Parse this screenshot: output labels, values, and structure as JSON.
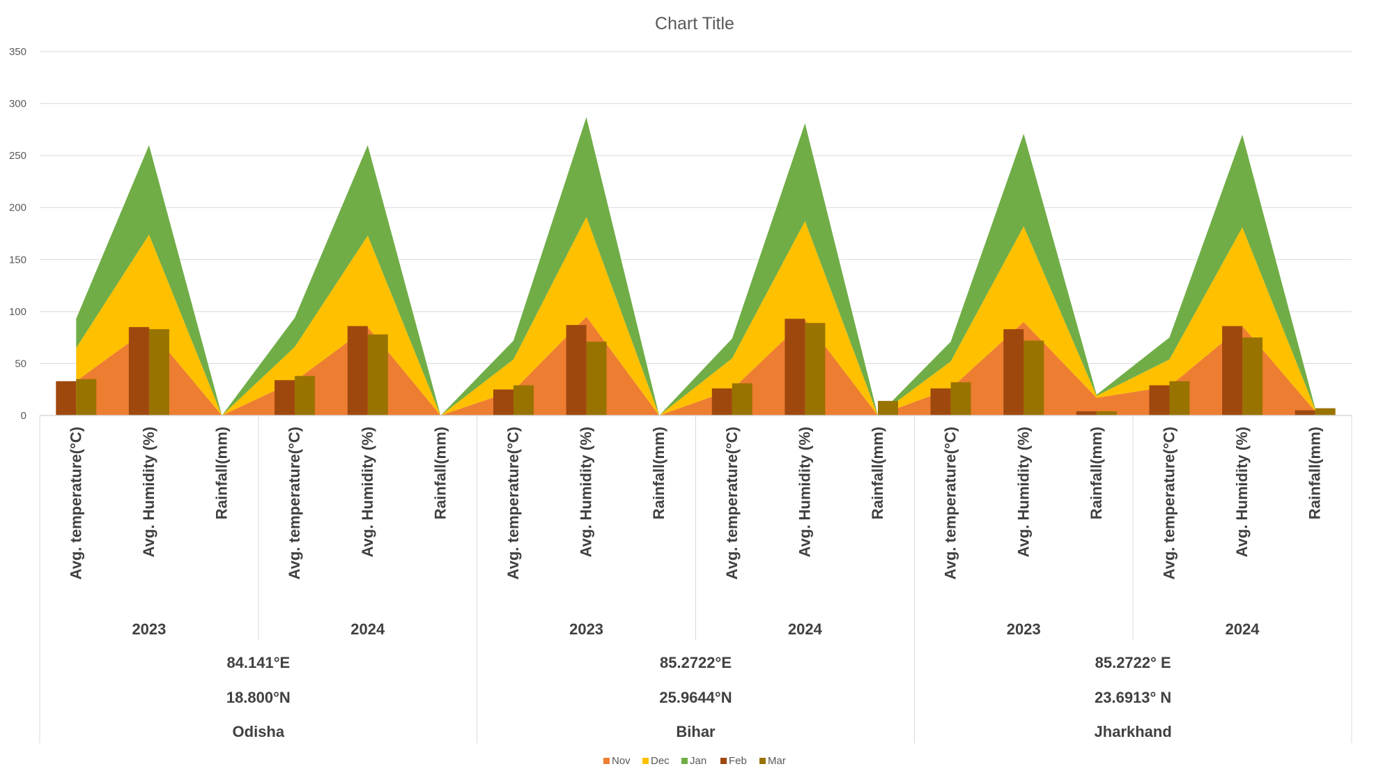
{
  "chart_data": {
    "type": "area",
    "title": "Chart Title",
    "ylim": [
      0,
      350
    ],
    "yticks": [
      "0",
      "50",
      "100",
      "150",
      "200",
      "250",
      "300",
      "350"
    ],
    "grid": true,
    "legend_position": "bottom",
    "categories": [
      "Avg. temperature(°C)",
      "Avg. Humidity (%)",
      "Rainfall(mm)",
      "Avg. temperature(°C)",
      "Avg. Humidity (%)",
      "Rainfall(mm)",
      "Avg. temperature(°C)",
      "Avg. Humidity (%)",
      "Rainfall(mm)",
      "Avg. temperature(°C)",
      "Avg. Humidity (%)",
      "Rainfall(mm)",
      "Avg. temperature(°C)",
      "Avg. Humidity (%)",
      "Rainfall(mm)",
      "Avg. temperature(°C)",
      "Avg. Humidity (%)",
      "Rainfall(mm)"
    ],
    "years": [
      "2023",
      "2024",
      "2023",
      "2024",
      "2023",
      "2024"
    ],
    "locations": [
      {
        "longitude": "84.141°E",
        "latitude": "18.800°N",
        "state": "Odisha"
      },
      {
        "longitude": "85.2722°E",
        "latitude": "25.9644°N",
        "state": "Bihar"
      },
      {
        "longitude": "85.2722° E",
        "latitude": "23.6913° N",
        "state": "Jharkhand"
      }
    ],
    "area_series": [
      {
        "name": "Nov",
        "color": "#ED7D31",
        "values": [
          33,
          84,
          0,
          33,
          85,
          0,
          24,
          95,
          0,
          25,
          92,
          0,
          26,
          90,
          17,
          28,
          86,
          4
        ]
      },
      {
        "name": "Dec",
        "color": "#FFC000",
        "values": [
          32,
          90,
          0,
          33,
          88,
          0,
          30,
          96,
          0,
          30,
          95,
          0,
          26,
          92,
          2,
          26,
          95,
          2
        ]
      },
      {
        "name": "Jan",
        "color": "#70AD47",
        "values": [
          28,
          86,
          0,
          28,
          87,
          0,
          18,
          96,
          0,
          19,
          94,
          0,
          19,
          89,
          1,
          21,
          89,
          1
        ]
      }
    ],
    "bar_series": [
      {
        "name": "Feb",
        "color": "#9E480E",
        "values": [
          33,
          85,
          0,
          34,
          86,
          0,
          25,
          87,
          0,
          26,
          93,
          0,
          26,
          83,
          4,
          29,
          86,
          5
        ]
      },
      {
        "name": "Mar",
        "color": "#997300",
        "values": [
          35,
          83,
          0,
          38,
          78,
          0,
          29,
          71,
          0,
          31,
          89,
          14,
          32,
          72,
          4,
          33,
          75,
          7
        ]
      }
    ]
  }
}
